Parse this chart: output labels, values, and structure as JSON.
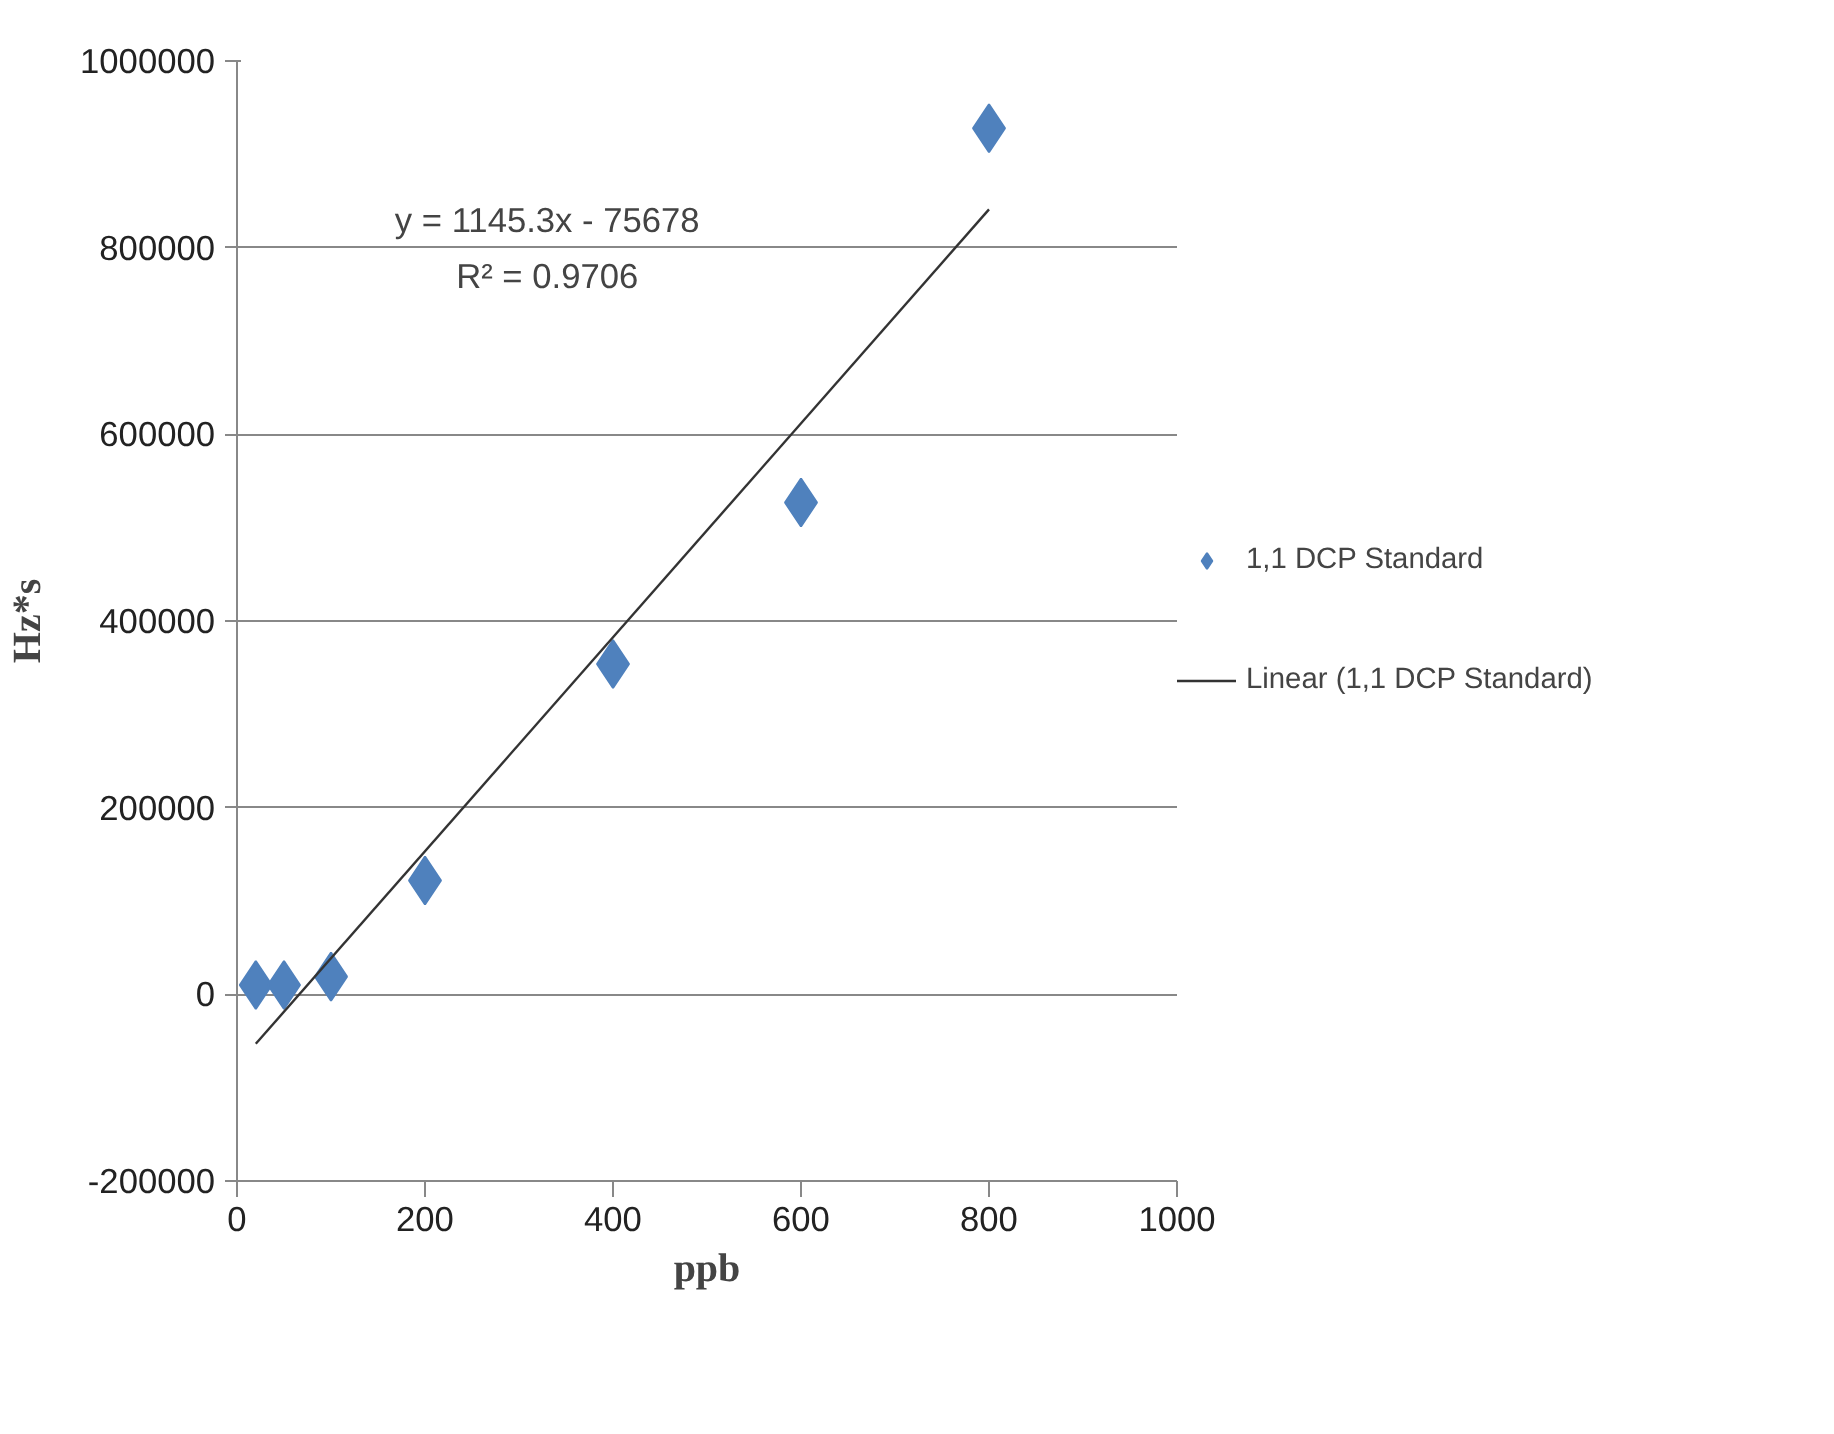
{
  "chart_data": {
    "type": "scatter",
    "ylabel": "Hz*s",
    "xlabel": "ppb",
    "x": [
      20,
      50,
      100,
      200,
      400,
      600,
      800
    ],
    "series": [
      {
        "name": "1,1 DCP Standard",
        "color": "#4f81bd",
        "marker": "diamond",
        "values": [
          10000,
          10000,
          19000,
          122000,
          354000,
          527000,
          928000
        ]
      },
      {
        "name": "Linear (1,1 DCP Standard)",
        "type": "line",
        "color": "#333333",
        "marker": "none",
        "x": [
          20,
          800
        ],
        "values": [
          -53000,
          841000
        ]
      }
    ],
    "annotations": [
      "y = 1145.3x - 75678",
      "R² = 0.9706"
    ],
    "xlim": [
      0,
      1000
    ],
    "xticks": [
      0,
      200,
      400,
      600,
      800,
      1000
    ],
    "ylim": [
      -200000,
      1000000
    ],
    "yticks": [
      -200000,
      0,
      200000,
      400000,
      600000,
      800000,
      1000000
    ],
    "grid": "y",
    "legend": "right"
  }
}
